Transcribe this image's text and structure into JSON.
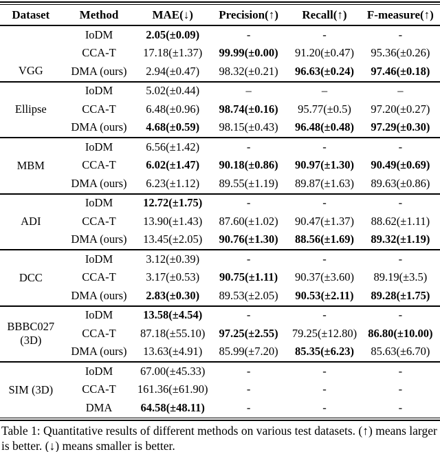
{
  "page": {
    "background": "#ffffff",
    "text_color": "#000000",
    "rule_color": "#000000"
  },
  "table": {
    "headers": [
      "Dataset",
      "Method",
      "MAE(↓)",
      "Precision(↑)",
      "Recall(↑)",
      "F-measure(↑)"
    ],
    "metric_keys": [
      "mae",
      "precision",
      "recall",
      "fmeasure"
    ],
    "groups": [
      {
        "dataset": "VGG",
        "dataset_align": "bottom",
        "rows": [
          {
            "method": "IoDM",
            "values": [
              {
                "t": "2.05(±0.09)",
                "b": true
              },
              {
                "t": "-"
              },
              {
                "t": "-"
              },
              {
                "t": "-"
              }
            ]
          },
          {
            "method": "CCA-T",
            "values": [
              {
                "t": "17.18(±1.37)"
              },
              {
                "t": "99.99(±0.00)",
                "b": true
              },
              {
                "t": "91.20(±0.47)"
              },
              {
                "t": "95.36(±0.26)"
              }
            ]
          },
          {
            "method": "DMA (ours)",
            "values": [
              {
                "t": "2.94(±0.47)"
              },
              {
                "t": "98.32(±0.21)"
              },
              {
                "t": "96.63(±0.24)",
                "b": true
              },
              {
                "t": "97.46(±0.18)",
                "b": true
              }
            ]
          }
        ]
      },
      {
        "dataset": "Ellipse",
        "dataset_align": "middle",
        "rows": [
          {
            "method": "IoDM",
            "values": [
              {
                "t": "5.02(±0.44)"
              },
              {
                "t": "–"
              },
              {
                "t": "–"
              },
              {
                "t": "–"
              }
            ]
          },
          {
            "method": "CCA-T",
            "values": [
              {
                "t": "6.48(±0.96)"
              },
              {
                "t": "98.74(±0.16)",
                "b": true
              },
              {
                "t": "95.77(±0.5)"
              },
              {
                "t": "97.20(±0.27)"
              }
            ]
          },
          {
            "method": "DMA (ours)",
            "values": [
              {
                "t": "4.68(±0.59)",
                "b": true
              },
              {
                "t": "98.15(±0.43)"
              },
              {
                "t": "96.48(±0.48)",
                "b": true
              },
              {
                "t": "97.29(±0.30)",
                "b": true
              }
            ]
          }
        ]
      },
      {
        "dataset": "MBM",
        "dataset_align": "middle",
        "rows": [
          {
            "method": "IoDM",
            "values": [
              {
                "t": "6.56(±1.42)"
              },
              {
                "t": "-"
              },
              {
                "t": "-"
              },
              {
                "t": "-"
              }
            ]
          },
          {
            "method": "CCA-T",
            "values": [
              {
                "t": "6.02(±1.47)",
                "b": true
              },
              {
                "t": "90.18(±0.86)",
                "b": true
              },
              {
                "t": "90.97(±1.30)",
                "b": true
              },
              {
                "t": "90.49(±0.69)",
                "b": true
              }
            ]
          },
          {
            "method": "DMA (ours)",
            "values": [
              {
                "t": "6.23(±1.12)"
              },
              {
                "t": "89.55(±1.19)"
              },
              {
                "t": "89.87(±1.63)"
              },
              {
                "t": "89.63(±0.86)"
              }
            ]
          }
        ]
      },
      {
        "dataset": "ADI",
        "dataset_align": "middle",
        "rows": [
          {
            "method": "IoDM",
            "values": [
              {
                "t": "12.72(±1.75)",
                "b": true
              },
              {
                "t": "-"
              },
              {
                "t": "-"
              },
              {
                "t": "-"
              }
            ]
          },
          {
            "method": "CCA-T",
            "values": [
              {
                "t": "13.90(±1.43)"
              },
              {
                "t": "87.60(±1.02)"
              },
              {
                "t": "90.47(±1.37)"
              },
              {
                "t": "88.62(±1.11)"
              }
            ]
          },
          {
            "method": "DMA (ours)",
            "values": [
              {
                "t": "13.45(±2.05)"
              },
              {
                "t": "90.76(±1.30)",
                "b": true
              },
              {
                "t": "88.56(±1.69)",
                "b": true
              },
              {
                "t": "89.32(±1.19)",
                "b": true
              }
            ]
          }
        ]
      },
      {
        "dataset": "DCC",
        "dataset_align": "middle",
        "rows": [
          {
            "method": "IoDM",
            "values": [
              {
                "t": "3.12(±0.39)"
              },
              {
                "t": "-"
              },
              {
                "t": "-"
              },
              {
                "t": "-"
              }
            ]
          },
          {
            "method": "CCA-T",
            "values": [
              {
                "t": "3.17(±0.53)"
              },
              {
                "t": "90.75(±1.11)",
                "b": true
              },
              {
                "t": "90.37(±3.60)"
              },
              {
                "t": "89.19(±3.5)"
              }
            ]
          },
          {
            "method": "DMA (ours)",
            "values": [
              {
                "t": "2.83(±0.30)",
                "b": true
              },
              {
                "t": "89.53(±2.05)"
              },
              {
                "t": "90.53(±2.11)",
                "b": true
              },
              {
                "t": "89.28(±1.75)",
                "b": true
              }
            ]
          }
        ]
      },
      {
        "dataset": "BBBC027\n(3D)",
        "dataset_align": "middle",
        "rows": [
          {
            "method": "IoDM",
            "values": [
              {
                "t": "13.58(±4.54)",
                "b": true
              },
              {
                "t": "-"
              },
              {
                "t": "-"
              },
              {
                "t": "-"
              }
            ]
          },
          {
            "method": "CCA-T",
            "values": [
              {
                "t": "87.18(±55.10)"
              },
              {
                "t": "97.25(±2.55)",
                "b": true
              },
              {
                "t": "79.25(±12.80)"
              },
              {
                "t": "86.80(±10.00)",
                "b": true
              }
            ]
          },
          {
            "method": "DMA (ours)",
            "values": [
              {
                "t": "13.63(±4.91)"
              },
              {
                "t": "85.99(±7.20)"
              },
              {
                "t": "85.35(±6.23)",
                "b": true
              },
              {
                "t": "85.63(±6.70)"
              }
            ]
          }
        ]
      },
      {
        "dataset": "SIM (3D)",
        "dataset_align": "middle",
        "rows": [
          {
            "method": "IoDM",
            "values": [
              {
                "t": "67.00(±45.33)"
              },
              {
                "t": "-"
              },
              {
                "t": "-"
              },
              {
                "t": "-"
              }
            ]
          },
          {
            "method": "CCA-T",
            "values": [
              {
                "t": "161.36(±61.90)"
              },
              {
                "t": "-"
              },
              {
                "t": "-"
              },
              {
                "t": "-"
              }
            ]
          },
          {
            "method": "DMA",
            "values": [
              {
                "t": "64.58(±48.11)",
                "b": true
              },
              {
                "t": "-"
              },
              {
                "t": "-"
              },
              {
                "t": "-"
              }
            ]
          }
        ]
      }
    ]
  },
  "caption": "Table 1: Quantitative results of different methods on various test datasets. (↑) means larger is better. (↓) means smaller is better."
}
